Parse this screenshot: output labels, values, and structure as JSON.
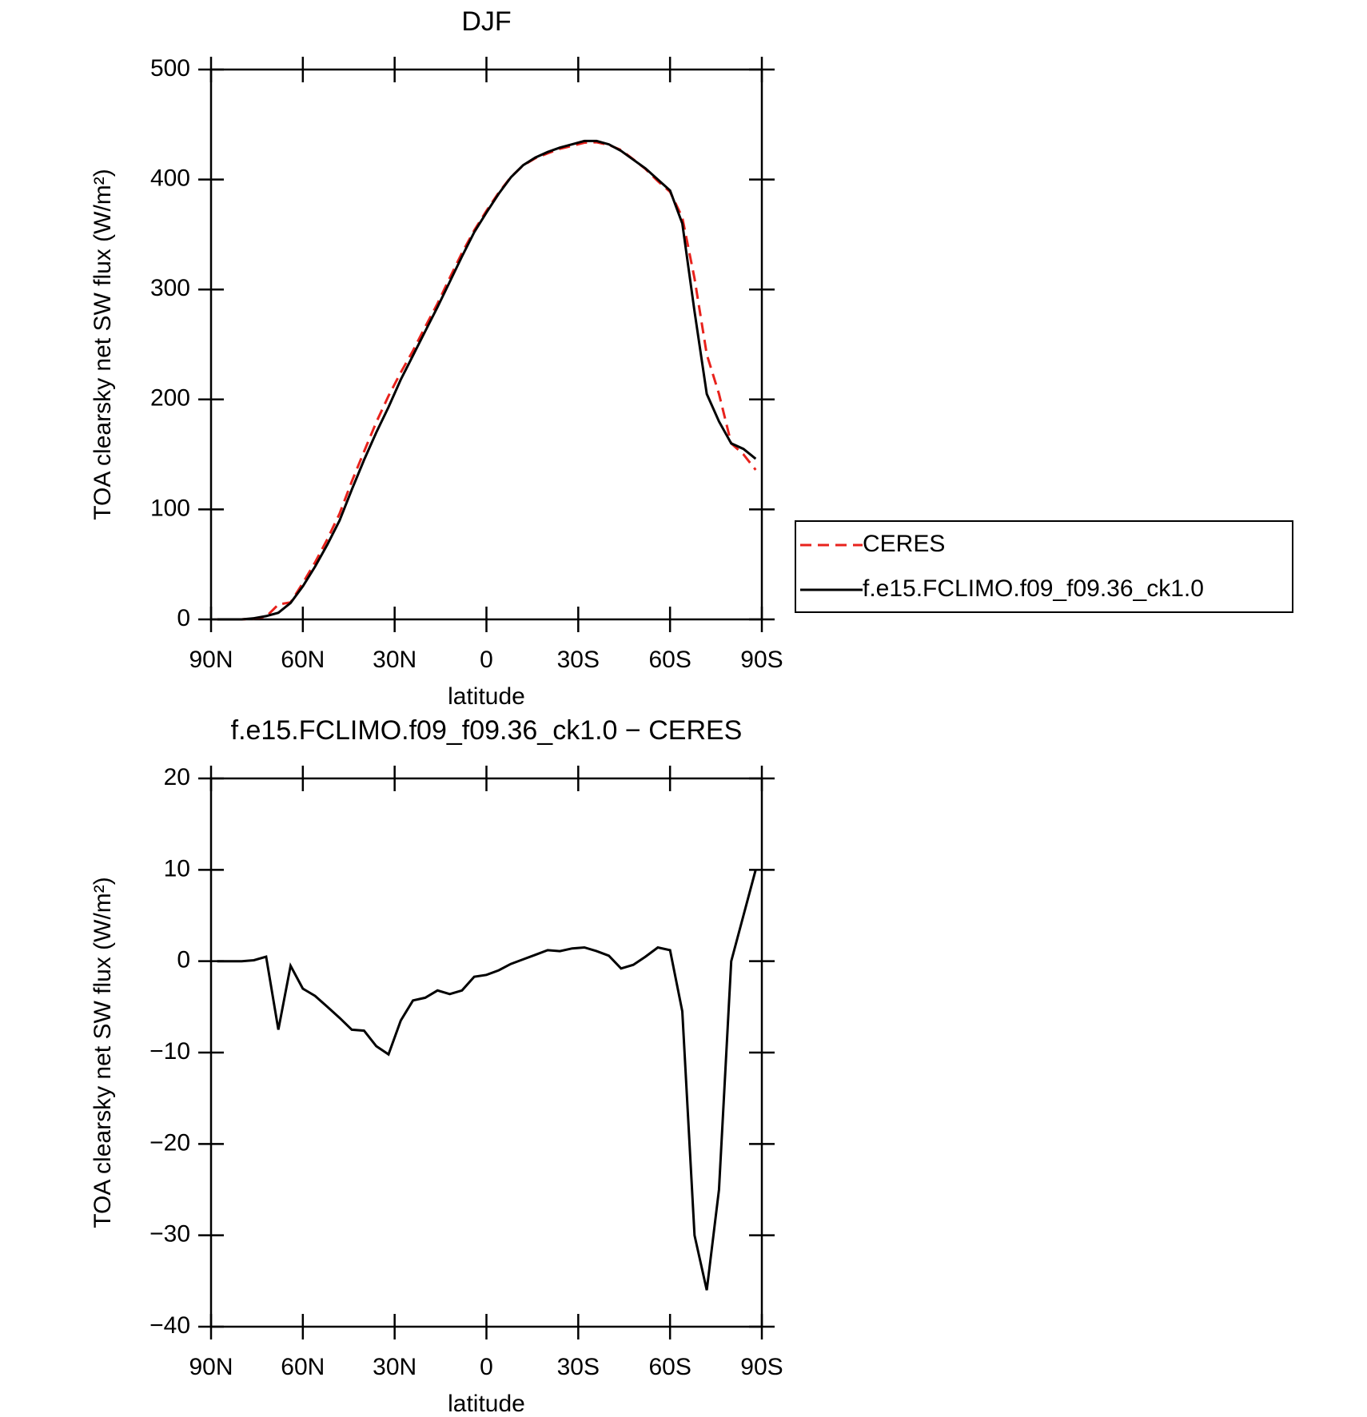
{
  "chart_data": [
    {
      "type": "line",
      "title": "DJF",
      "x_label": "latitude",
      "y_label": "TOA clearsky net SW flux (W/m²)",
      "x": [
        88,
        84,
        80,
        76,
        72,
        68,
        64,
        60,
        56,
        52,
        48,
        44,
        40,
        36,
        32,
        28,
        24,
        20,
        16,
        12,
        8,
        4,
        0,
        -4,
        -8,
        -12,
        -16,
        -20,
        -24,
        -28,
        -32,
        -36,
        -40,
        -44,
        -48,
        -52,
        -56,
        -60,
        -64,
        -68,
        -72,
        -76,
        -80,
        -84,
        -88
      ],
      "xlim": [
        90,
        -90
      ],
      "xticks": [
        {
          "value": 90,
          "label": "90N"
        },
        {
          "value": 60,
          "label": "60N"
        },
        {
          "value": 30,
          "label": "30N"
        },
        0,
        {
          "value": -30,
          "label": "30S"
        },
        {
          "value": -60,
          "label": "60S"
        },
        {
          "value": -90,
          "label": "90S"
        }
      ],
      "ylim": [
        0,
        500
      ],
      "yticks": [
        0,
        100,
        200,
        300,
        400,
        500
      ],
      "legend": "right",
      "series": [
        {
          "name": "CERES",
          "color": "#e8221c",
          "line_style": "dashed",
          "values": [
            0,
            0,
            0,
            0.9,
            2.5,
            13.5,
            15.5,
            33,
            51.8,
            73,
            96.2,
            125.5,
            152.6,
            179.3,
            203.2,
            224.5,
            244.3,
            266,
            287.2,
            310.6,
            333.2,
            353.7,
            371.5,
            388,
            402.3,
            412.8,
            419.3,
            423.8,
            427.9,
            430.6,
            433.5,
            433.9,
            431.4,
            426.8,
            418.4,
            409.5,
            398.5,
            388.8,
            365.5,
            310,
            241,
            205,
            160,
            150,
            136
          ]
        },
        {
          "name": "f.e15.FCLIMO.f09_f09.36_ck1.0",
          "color": "#000000",
          "line_style": "solid",
          "values": [
            0,
            0,
            0,
            1,
            3,
            6,
            15,
            30,
            48,
            68,
            90,
            118,
            145,
            170,
            193,
            218,
            240,
            262,
            284,
            307,
            330,
            352,
            370,
            387,
            402,
            413,
            420,
            425,
            429,
            432,
            435,
            435,
            432,
            426,
            418,
            410,
            400,
            390,
            360,
            280,
            205,
            180,
            160,
            155,
            146
          ]
        }
      ]
    },
    {
      "type": "line",
      "title": "f.e15.FCLIMO.f09_f09.36_ck1.0 − CERES",
      "x_label": "latitude",
      "y_label": "TOA clearsky net SW flux (W/m²)",
      "x": [
        88,
        84,
        80,
        76,
        72,
        68,
        64,
        60,
        56,
        52,
        48,
        44,
        40,
        36,
        32,
        28,
        24,
        20,
        16,
        12,
        8,
        4,
        0,
        -4,
        -8,
        -12,
        -16,
        -20,
        -24,
        -28,
        -32,
        -36,
        -40,
        -44,
        -48,
        -52,
        -56,
        -60,
        -64,
        -68,
        -72,
        -76,
        -80,
        -84,
        -88
      ],
      "xlim": [
        90,
        -90
      ],
      "xticks": [
        {
          "value": 90,
          "label": "90N"
        },
        {
          "value": 60,
          "label": "60N"
        },
        {
          "value": 30,
          "label": "30N"
        },
        0,
        {
          "value": -30,
          "label": "30S"
        },
        {
          "value": -60,
          "label": "60S"
        },
        {
          "value": -90,
          "label": "90S"
        }
      ],
      "ylim": [
        -40,
        20
      ],
      "yticks": [
        {
          "value": -40,
          "label": "−40"
        },
        {
          "value": -30,
          "label": "−30"
        },
        {
          "value": -20,
          "label": "−20"
        },
        {
          "value": -10,
          "label": "−10"
        },
        0,
        10,
        20
      ],
      "color": "#000000",
      "values": [
        0,
        0,
        0,
        0.1,
        0.5,
        -7.5,
        -0.5,
        -3,
        -3.8,
        -5,
        -6.2,
        -7.5,
        -7.6,
        -9.3,
        -10.2,
        -6.5,
        -4.3,
        -4,
        -3.2,
        -3.6,
        -3.2,
        -1.7,
        -1.5,
        -1,
        -0.3,
        0.2,
        0.7,
        1.2,
        1.1,
        1.4,
        1.5,
        1.1,
        0.6,
        -0.8,
        -0.4,
        0.5,
        1.5,
        1.2,
        -5.5,
        -30,
        -36,
        -25,
        0,
        5,
        10
      ]
    }
  ]
}
